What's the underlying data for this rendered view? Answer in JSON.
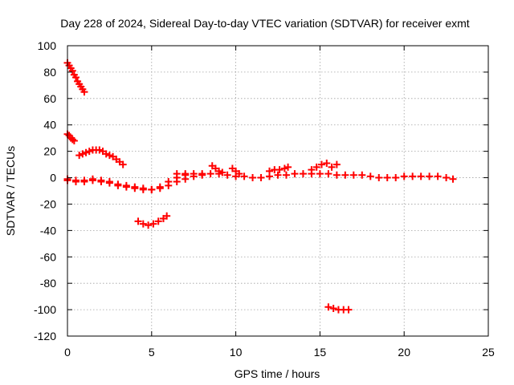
{
  "chart_data": {
    "type": "scatter",
    "title": "Day 228 of 2024, Sidereal Day-to-day VTEC variation (SDTVAR) for receiver exmt",
    "xlabel": "GPS time / hours",
    "ylabel": "SDTVAR / TECUs",
    "xlim": [
      0,
      25
    ],
    "ylim": [
      -120,
      100
    ],
    "xticks": [
      0,
      5,
      10,
      15,
      20,
      25
    ],
    "yticks": [
      100,
      80,
      60,
      40,
      20,
      0,
      -20,
      -40,
      -60,
      -80,
      -100,
      -120
    ],
    "xtick_labels": [
      "0",
      "5",
      "10",
      "15",
      "20",
      "25"
    ],
    "ytick_labels": [
      "100",
      "80",
      "60",
      "40",
      "20",
      "0",
      "-20",
      "-40",
      "-60",
      "-80",
      "-100",
      "-120"
    ],
    "grid": true,
    "marker": "plus",
    "color": "#ff0000",
    "series": [
      {
        "x": [
          0,
          0.1,
          0.2,
          0.3,
          0.4,
          0.5,
          0.6,
          0.7,
          0.8,
          0.9,
          1.0
        ],
        "y": [
          87,
          85,
          83,
          81,
          78,
          76,
          73,
          71,
          69,
          67,
          65
        ]
      },
      {
        "x": [
          0,
          0.1,
          0.2,
          0.3,
          0.4
        ],
        "y": [
          33,
          32,
          30,
          29,
          28
        ]
      },
      {
        "x": [
          0.7,
          0.9,
          1.1,
          1.3,
          1.5,
          1.7,
          1.9,
          2.1,
          2.3,
          2.5,
          2.7,
          2.9,
          3.1,
          3.3
        ],
        "y": [
          17,
          18,
          19,
          20,
          21,
          21,
          21,
          20,
          18,
          17,
          16,
          14,
          12,
          10
        ]
      },
      {
        "x": [
          0,
          0.5,
          1.0,
          1.5,
          2.0,
          2.5,
          3.0,
          3.5,
          4.0,
          4.5,
          5.0,
          5.5,
          6.0,
          6.5,
          7.0
        ],
        "y": [
          -1,
          -2,
          -3,
          -2,
          -3,
          -4,
          -6,
          -7,
          -8,
          -9,
          -9,
          -7,
          -3,
          0,
          2
        ]
      },
      {
        "x": [
          0,
          0.5,
          1.0,
          1.5,
          2.0,
          2.5,
          3.0,
          3.5,
          4.0,
          4.5,
          5.0,
          5.5,
          6.0,
          6.5,
          7.0,
          7.5,
          8.0
        ],
        "y": [
          -2,
          -3,
          -2,
          -1,
          -2,
          -3,
          -5,
          -6,
          -7,
          -8,
          -9,
          -8,
          -6,
          -3,
          -1,
          1,
          2
        ]
      },
      {
        "x": [
          4.2,
          4.5,
          4.8,
          5.1,
          5.4,
          5.7,
          5.9
        ],
        "y": [
          -33,
          -35,
          -36,
          -35,
          -33,
          -31,
          -29
        ]
      },
      {
        "x": [
          6.5,
          7.0,
          7.5,
          8.0,
          8.5,
          9.0,
          9.5,
          10.0,
          10.5,
          11.0,
          11.5,
          12.0,
          12.5,
          13.0,
          13.5,
          14.0,
          14.5,
          15.0,
          15.5,
          16.0,
          16.5,
          17.0
        ],
        "y": [
          3,
          3,
          3,
          3,
          3,
          3,
          2,
          1,
          1,
          0,
          0,
          1,
          2,
          2,
          3,
          3,
          3,
          3,
          3,
          2,
          2,
          2
        ]
      },
      {
        "x": [
          8.6,
          8.8,
          9.0,
          9.2,
          9.8,
          10.0,
          10.2,
          12.0,
          12.3,
          12.6,
          12.9,
          13.1,
          14.5,
          14.8,
          15.1,
          15.4,
          15.7,
          16.0
        ],
        "y": [
          9,
          7,
          5,
          4,
          7,
          5,
          3,
          5,
          6,
          6,
          7,
          8,
          6,
          8,
          10,
          11,
          8,
          10
        ]
      },
      {
        "x": [
          15.5,
          15.8,
          16.1,
          16.4,
          16.7
        ],
        "y": [
          -98,
          -99,
          -100,
          -100,
          -100
        ]
      },
      {
        "x": [
          17.5,
          18.0,
          18.5,
          19.0,
          19.5,
          20.0,
          20.5,
          21.0,
          21.5,
          22.0,
          22.5,
          22.9
        ],
        "y": [
          2,
          1,
          0,
          0,
          0,
          1,
          1,
          1,
          1,
          1,
          0,
          -1
        ]
      }
    ]
  }
}
